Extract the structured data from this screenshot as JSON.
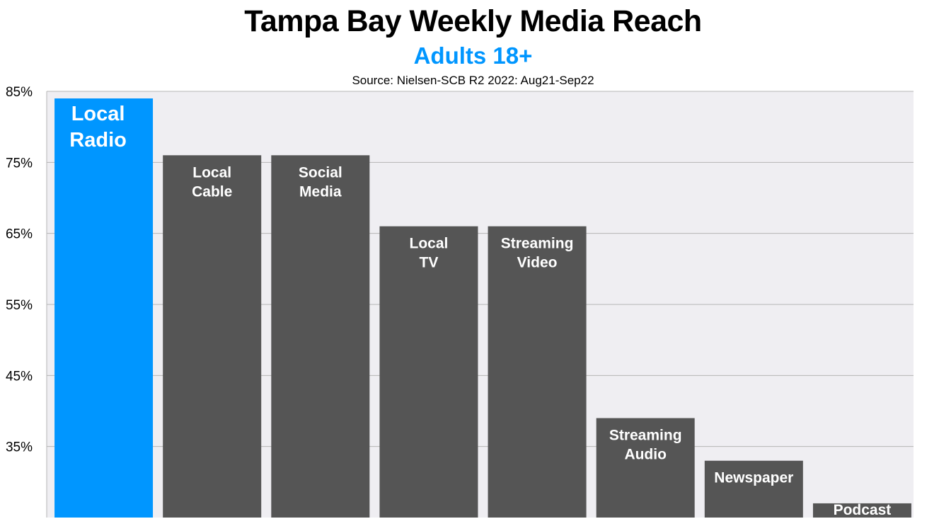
{
  "chart_data": {
    "type": "bar",
    "title": "Tampa Bay Weekly Media Reach",
    "subtitle": "Adults 18+",
    "source": "Source: Nielsen-SCB R2 2022: Aug21-Sep22",
    "categories": [
      [
        "Local",
        "Radio"
      ],
      [
        "Local",
        "Cable"
      ],
      [
        "Social",
        "Media"
      ],
      [
        "Local",
        "TV"
      ],
      [
        "Streaming",
        "Video"
      ],
      [
        "Streaming",
        "Audio"
      ],
      [
        "Newspaper"
      ],
      [
        "Podcast"
      ]
    ],
    "values": [
      84,
      76,
      76,
      66,
      66,
      39,
      33,
      27
    ],
    "highlight_index": 0,
    "ylim": [
      25,
      85
    ],
    "yticks": [
      35,
      45,
      55,
      65,
      75,
      85
    ],
    "ytick_labels": [
      "35%",
      "45%",
      "55%",
      "65%",
      "75%",
      "85%"
    ],
    "grid": true,
    "colors": {
      "highlight": "#0096FF",
      "bar": "#555555",
      "plot_background": "#EFEEF2",
      "gridline": "#B5B5B5",
      "subtitle": "#0096FF"
    }
  }
}
